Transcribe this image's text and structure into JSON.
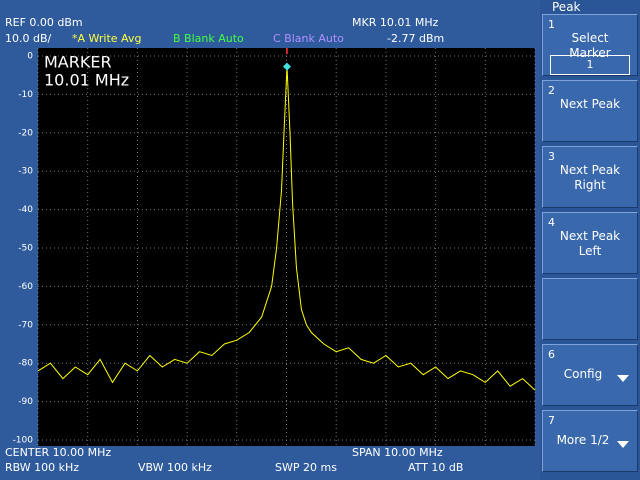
{
  "header": {
    "ref": "REF  0.00 dBm",
    "scale": "10.0 dB/",
    "trace_a": "*A Write Avg",
    "trace_b": "B Blank Auto",
    "trace_c": "C Blank Auto",
    "mkr_freq": "MKR 10.01 MHz",
    "mkr_level": "-2.77 dBm"
  },
  "overlay": {
    "title": "MARKER",
    "freq": "10.01 MHz"
  },
  "footer": {
    "center": "CENTER 10.00 MHz",
    "span": "SPAN 10.00 MHz",
    "rbw": "RBW 100 kHz",
    "vbw": "VBW 100 kHz",
    "swp": "SWP 20 ms",
    "att": "ATT 10 dB"
  },
  "menu": {
    "title": "Peak",
    "keys": [
      {
        "number": "1",
        "label": "Select Marker",
        "value": "1"
      },
      {
        "number": "2",
        "label": "Next Peak"
      },
      {
        "number": "3",
        "label": "Next Peak Right"
      },
      {
        "number": "4",
        "label": "Next Peak Left"
      },
      {
        "number": "6",
        "label": "Config"
      },
      {
        "number": "7",
        "label": "More 1/2"
      }
    ]
  },
  "chart_data": {
    "type": "line",
    "color": "#ffff00",
    "grid": true,
    "xlim": [
      5,
      15
    ],
    "ylim": [
      -100,
      0
    ],
    "yticks": [
      0,
      -10,
      -20,
      -30,
      -40,
      -50,
      -60,
      -70,
      -80,
      -90,
      -100
    ],
    "x": [
      5,
      5.25,
      5.5,
      5.75,
      6,
      6.25,
      6.5,
      6.75,
      7,
      7.25,
      7.5,
      7.75,
      8,
      8.25,
      8.5,
      8.75,
      9,
      9.25,
      9.5,
      9.6,
      9.7,
      9.8,
      9.9,
      9.95,
      10.01,
      10.07,
      10.12,
      10.2,
      10.3,
      10.4,
      10.5,
      10.75,
      11,
      11.25,
      11.5,
      11.75,
      12,
      12.25,
      12.5,
      12.75,
      13,
      13.25,
      13.5,
      13.75,
      14,
      14.25,
      14.5,
      14.75,
      15
    ],
    "y": [
      -82,
      -80,
      -84,
      -81,
      -83,
      -79,
      -85,
      -80,
      -82,
      -78,
      -81,
      -79,
      -80,
      -77,
      -78,
      -75,
      -74,
      -72,
      -68,
      -64,
      -60,
      -50,
      -35,
      -20,
      -2.77,
      -20,
      -38,
      -55,
      -66,
      -70,
      -72,
      -75,
      -77,
      -76,
      -79,
      -80,
      -78,
      -81,
      -80,
      -83,
      -81,
      -84,
      -82,
      -83,
      -85,
      -82,
      -86,
      -84,
      -87
    ],
    "marker": {
      "x": 10.01,
      "y": -2.77,
      "color": "#40e0e0"
    }
  }
}
